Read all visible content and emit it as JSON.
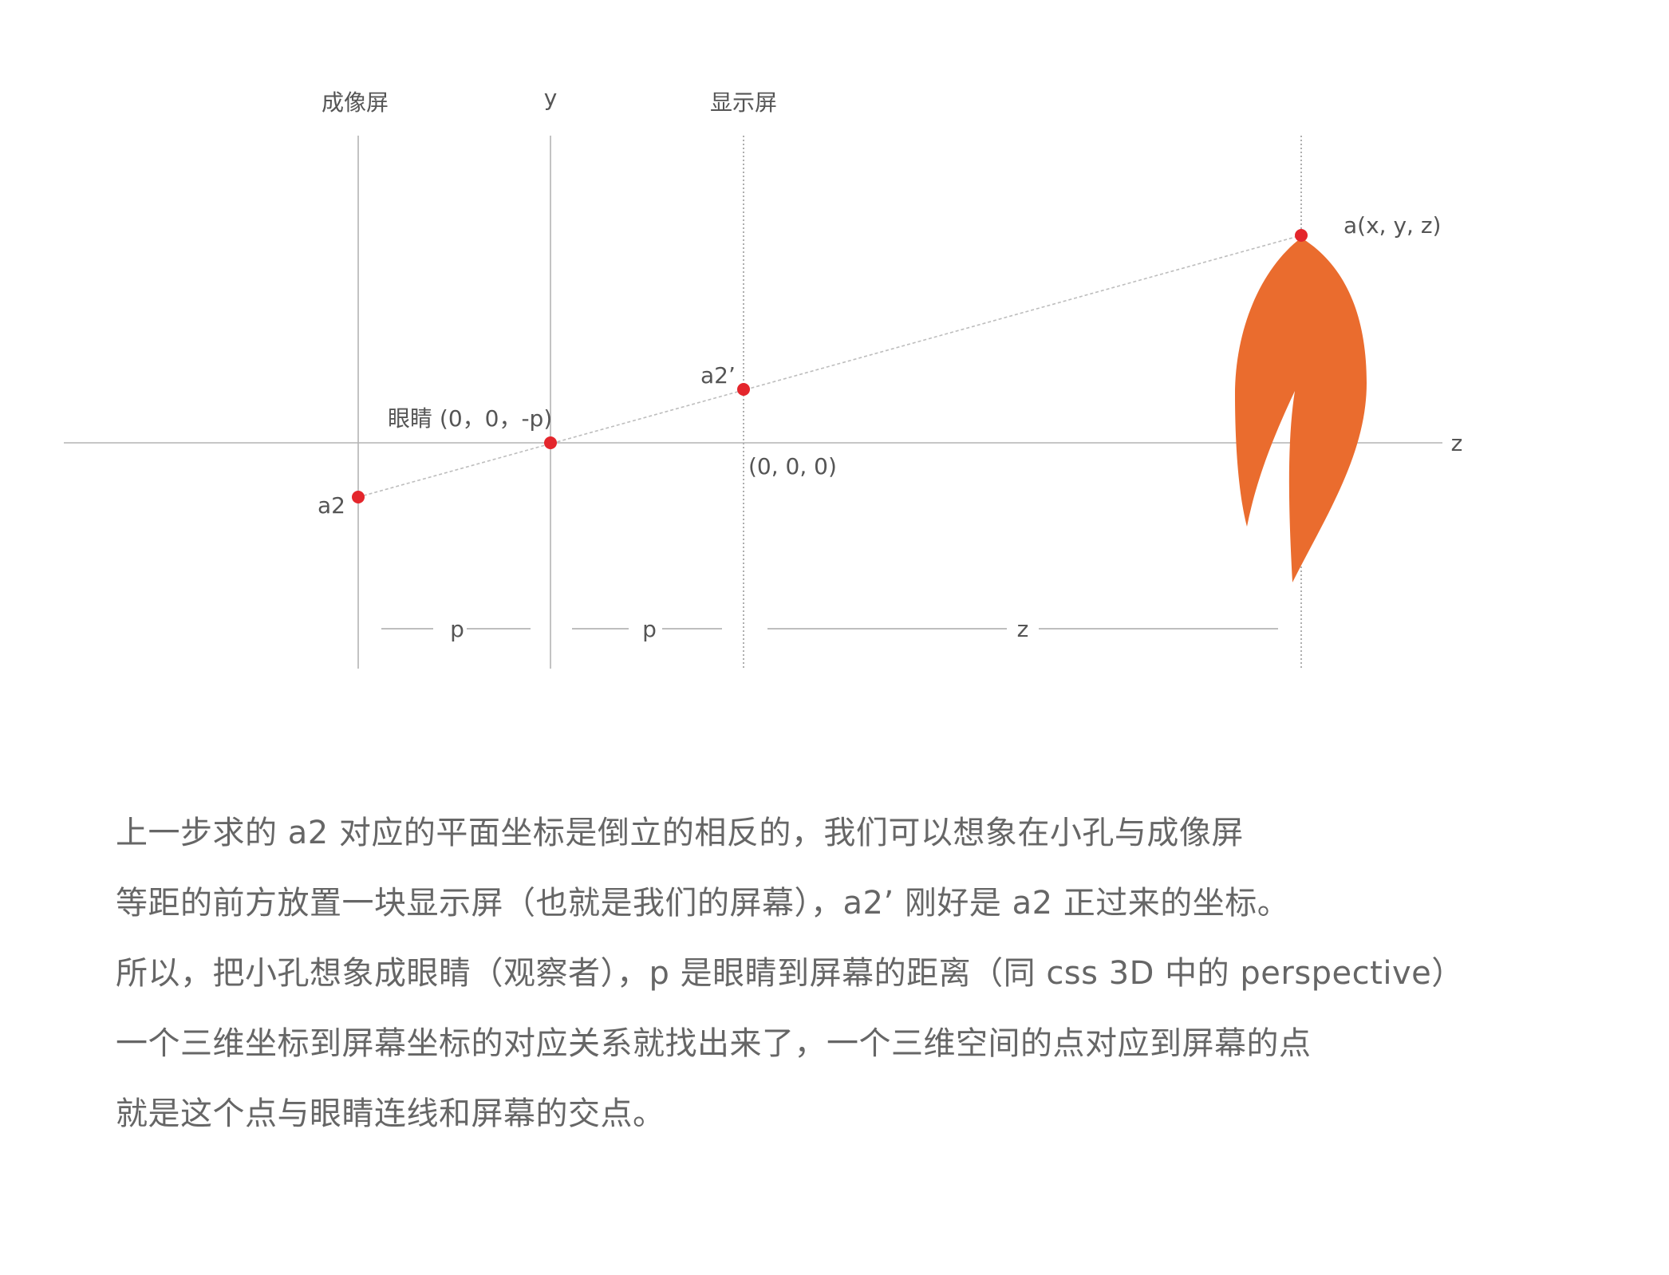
{
  "diagram": {
    "labels": {
      "imaging_screen": "成像屏",
      "y_axis": "y",
      "display_screen": "显示屏",
      "z_axis": "z",
      "point_a": "a(x, y, z)",
      "point_a2_prime": "a2’",
      "eye": "眼睛 (0，0，-p)",
      "origin": "(0, 0, 0)",
      "point_a2": "a2",
      "dim_p1": "p",
      "dim_p2": "p",
      "dim_z": "z"
    },
    "colors": {
      "point": "#e4262c",
      "flame": "#ea6c2e",
      "axis": "#b4b4b4"
    },
    "object_icon": "flame-icon"
  },
  "explanation": {
    "lines": [
      "上一步求的 a2 对应的平面坐标是倒立的相反的，我们可以想象在小孔与成像屏",
      "等距的前方放置一块显示屏（也就是我们的屏幕），a2’ 刚好是 a2 正过来的坐标。",
      "所以，把小孔想象成眼睛（观察者），p 是眼睛到屏幕的距离（同 css 3D 中的 perspective）",
      "一个三维坐标到屏幕坐标的对应关系就找出来了，一个三维空间的点对应到屏幕的点",
      "就是这个点与眼睛连线和屏幕的交点。"
    ]
  }
}
